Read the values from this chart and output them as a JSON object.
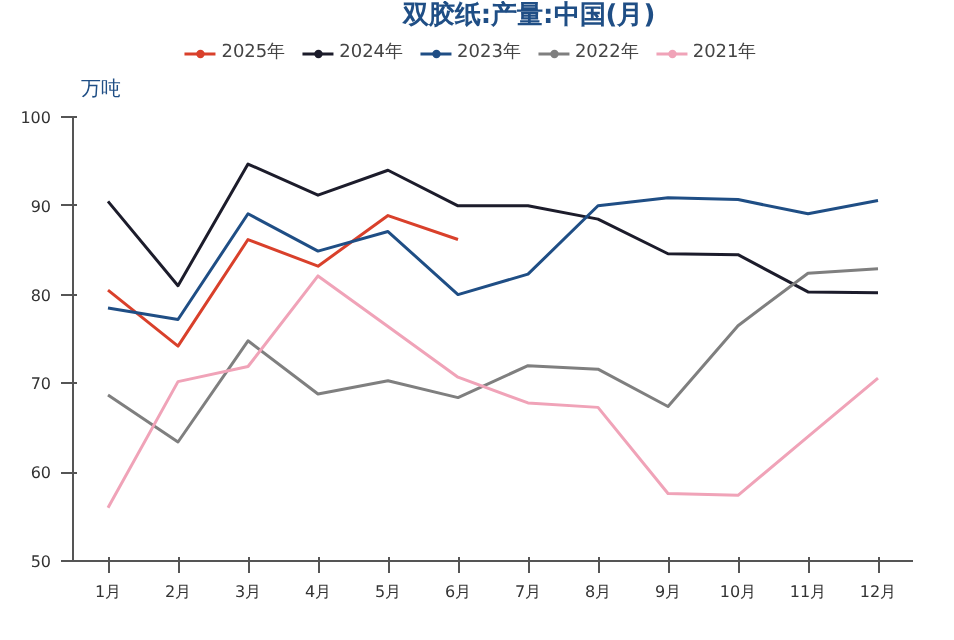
{
  "chart_data": {
    "type": "line",
    "title": "双胶纸:产量:中国(月)",
    "ylabel": "万吨",
    "categories": [
      "1月",
      "2月",
      "3月",
      "4月",
      "5月",
      "6月",
      "7月",
      "8月",
      "9月",
      "10月",
      "11月",
      "12月"
    ],
    "ylim": [
      50,
      100
    ],
    "yticks": [
      50,
      60,
      70,
      80,
      90,
      100
    ],
    "grid": false,
    "legend": "top",
    "marker": "none",
    "line_style": "solid",
    "series": [
      {
        "name": "2025年",
        "color": "#d9402b",
        "values": [
          80.5,
          74.2,
          86.2,
          83.2,
          88.9,
          86.2,
          null,
          null,
          null,
          null,
          null,
          null
        ]
      },
      {
        "name": "2024年",
        "color": "#1c1c2b",
        "values": [
          90.5,
          81,
          94.7,
          91.2,
          94,
          90,
          90,
          88.5,
          84.6,
          84.5,
          80.3,
          80.2
        ]
      },
      {
        "name": "2023年",
        "color": "#1f4e85",
        "values": [
          78.5,
          77.2,
          89.1,
          84.9,
          87.1,
          80,
          82.3,
          90,
          90.9,
          90.7,
          89.1,
          90.6
        ]
      },
      {
        "name": "2022年",
        "color": "#7f7f7f",
        "values": [
          68.7,
          63.4,
          74.8,
          68.8,
          70.3,
          68.4,
          72,
          71.6,
          67.4,
          76.5,
          82.4,
          82.9
        ]
      },
      {
        "name": "2021年",
        "color": "#f0a3b8",
        "values": [
          56,
          70.2,
          71.9,
          82.1,
          76.4,
          70.7,
          67.8,
          67.3,
          57.6,
          57.4,
          64,
          70.6
        ]
      }
    ]
  }
}
